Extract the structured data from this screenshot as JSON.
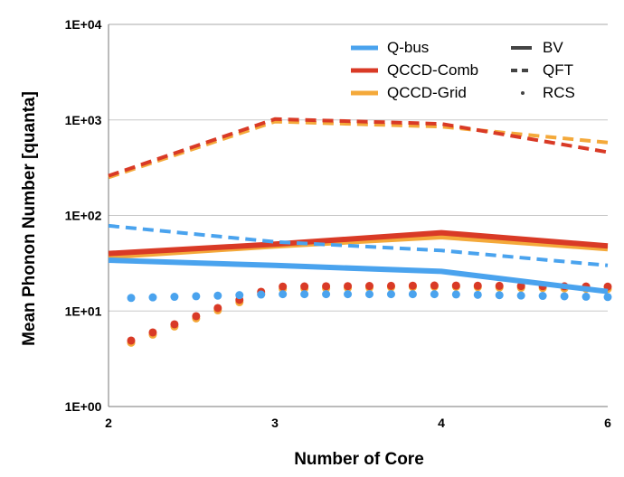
{
  "chart_data": {
    "type": "line",
    "title": "",
    "xlabel": "Number of Core",
    "ylabel": "Mean Phonon Number [quanta]",
    "x": [
      2,
      3,
      4,
      6
    ],
    "xlim": [
      2,
      6
    ],
    "ylim": [
      1,
      10000
    ],
    "yscale": "log",
    "x_ticks": [
      "2",
      "3",
      "4",
      "6"
    ],
    "y_ticks": [
      "1E+00",
      "1E+01",
      "1E+02",
      "1E+03",
      "1E+04"
    ],
    "grid": "horizontal",
    "legend_placement": "top-right",
    "architectures": [
      {
        "name": "Q-bus",
        "color": "#4aa3ee"
      },
      {
        "name": "QCCD-Comb",
        "color": "#d93a26"
      },
      {
        "name": "QCCD-Grid",
        "color": "#f4a93a"
      }
    ],
    "benchmarks": [
      {
        "name": "BV",
        "style": "solid"
      },
      {
        "name": "QFT",
        "style": "dashed"
      },
      {
        "name": "RCS",
        "style": "dotted"
      }
    ],
    "series": [
      {
        "arch": "Q-bus",
        "bench": "BV",
        "values": [
          34,
          30,
          26,
          16
        ]
      },
      {
        "arch": "Q-bus",
        "bench": "QFT",
        "values": [
          78,
          53,
          43,
          30
        ]
      },
      {
        "arch": "Q-bus",
        "bench": "RCS",
        "values": [
          13.5,
          15,
          15,
          14
        ]
      },
      {
        "arch": "QCCD-Comb",
        "bench": "BV",
        "values": [
          40,
          50,
          66,
          48
        ]
      },
      {
        "arch": "QCCD-Comb",
        "bench": "QFT",
        "values": [
          260,
          1020,
          910,
          460
        ]
      },
      {
        "arch": "QCCD-Comb",
        "bench": "RCS",
        "values": [
          4,
          18,
          18.5,
          18
        ]
      },
      {
        "arch": "QCCD-Grid",
        "bench": "BV",
        "values": [
          37,
          48,
          60,
          45
        ]
      },
      {
        "arch": "QCCD-Grid",
        "bench": "QFT",
        "values": [
          250,
          960,
          850,
          580
        ]
      },
      {
        "arch": "QCCD-Grid",
        "bench": "RCS",
        "values": [
          3.8,
          17,
          18,
          17
        ]
      }
    ]
  }
}
